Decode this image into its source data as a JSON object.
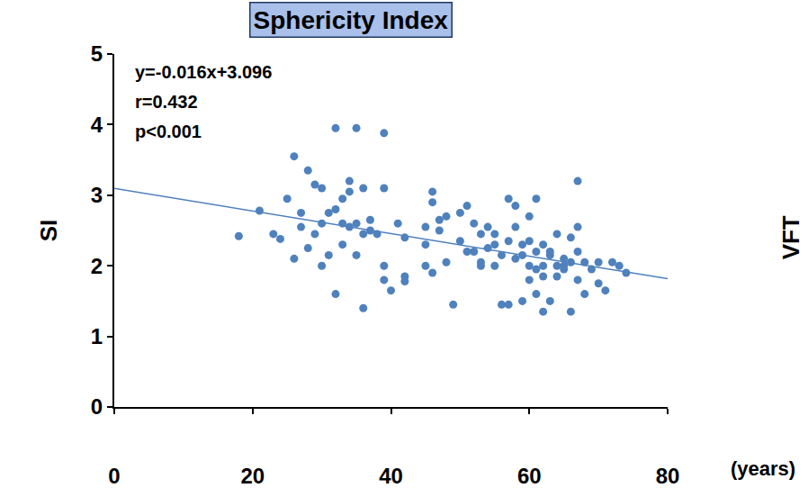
{
  "chart_data": {
    "type": "scatter",
    "title": "Sphericity Index",
    "x_label": "(years)",
    "y_label": "SI",
    "annotations": [
      "y=-0.016x+3.096",
      "r=0.432",
      "p<0.001"
    ],
    "side_text": "VFT",
    "color": "#4f81bd",
    "marker": "circle",
    "grid": false,
    "xlim": [
      0,
      80
    ],
    "ylim": [
      0,
      5
    ],
    "xticks": [
      0,
      20,
      40,
      60,
      80
    ],
    "yticks": [
      0,
      1,
      2,
      3,
      4,
      5
    ],
    "x": [
      18,
      21,
      23,
      24,
      25,
      26,
      26,
      27,
      27,
      28,
      28,
      29,
      29,
      30,
      30,
      30,
      31,
      31,
      32,
      32,
      32,
      33,
      33,
      33,
      34,
      34,
      34,
      35,
      35,
      35,
      36,
      36,
      36,
      37,
      37,
      38,
      39,
      39,
      39,
      39,
      40,
      41,
      42,
      42,
      42,
      45,
      45,
      45,
      46,
      46,
      46,
      47,
      47,
      48,
      48,
      49,
      50,
      50,
      51,
      51,
      52,
      52,
      53,
      53,
      53,
      54,
      54,
      55,
      55,
      55,
      56,
      56,
      57,
      57,
      57,
      58,
      58,
      58,
      59,
      59,
      59,
      60,
      60,
      60,
      60,
      61,
      61,
      61,
      61,
      62,
      62,
      62,
      62,
      63,
      63,
      64,
      64,
      65,
      65,
      66,
      66,
      66,
      67,
      67,
      67,
      67,
      68,
      68,
      69,
      70,
      70,
      71,
      72,
      73,
      74,
      63,
      64,
      65
    ],
    "values": [
      2.42,
      2.78,
      2.45,
      2.38,
      2.95,
      3.55,
      2.1,
      2.55,
      2.75,
      2.25,
      3.35,
      3.15,
      2.45,
      2.6,
      3.1,
      2.0,
      2.15,
      2.75,
      3.95,
      2.8,
      1.6,
      2.6,
      2.95,
      2.3,
      3.05,
      3.2,
      2.55,
      3.95,
      2.6,
      2.15,
      3.1,
      2.45,
      1.4,
      2.5,
      2.65,
      2.45,
      3.88,
      2.0,
      1.8,
      3.1,
      1.65,
      2.6,
      1.85,
      1.78,
      2.4,
      2.3,
      2.0,
      2.55,
      1.9,
      3.05,
      2.9,
      2.65,
      2.5,
      2.05,
      2.7,
      1.45,
      2.35,
      2.75,
      2.2,
      2.85,
      2.6,
      2.2,
      2.0,
      2.45,
      2.05,
      2.55,
      2.25,
      2.0,
      2.3,
      2.45,
      2.15,
      1.45,
      2.95,
      2.35,
      1.45,
      2.1,
      2.85,
      2.55,
      2.15,
      1.5,
      2.3,
      2.7,
      2.0,
      2.35,
      1.8,
      2.95,
      2.2,
      1.95,
      1.6,
      2.0,
      2.3,
      1.35,
      1.85,
      2.15,
      1.5,
      2.0,
      2.45,
      1.95,
      2.0,
      2.4,
      1.35,
      2.05,
      1.8,
      2.2,
      2.55,
      3.2,
      1.6,
      2.05,
      1.95,
      2.05,
      1.75,
      1.65,
      2.05,
      2.0,
      1.9,
      2.2,
      1.85,
      2.1
    ],
    "trendline": {
      "x": [
        0,
        80
      ],
      "values": [
        3.096,
        1.816
      ],
      "color": "#4f81bd"
    }
  }
}
